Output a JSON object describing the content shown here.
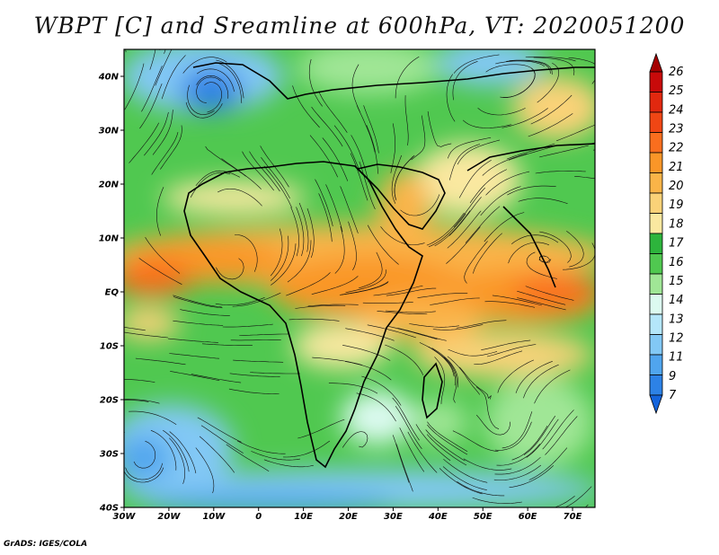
{
  "title": "WBPT [C] and Sreamline at 600hPa, VT: 2020051200",
  "credit": "GrADS: IGES/COLA",
  "axes": {
    "lat_labels": [
      "40N",
      "30N",
      "20N",
      "10N",
      "EQ",
      "10S",
      "20S",
      "30S",
      "40S"
    ],
    "lat_values": [
      40,
      30,
      20,
      10,
      0,
      -10,
      -20,
      -30,
      -40
    ],
    "lon_labels": [
      "30W",
      "20W",
      "10W",
      "0",
      "10E",
      "20E",
      "30E",
      "40E",
      "50E",
      "60E",
      "70E"
    ],
    "lon_values": [
      -30,
      -20,
      -10,
      0,
      10,
      20,
      30,
      40,
      50,
      60,
      70
    ],
    "lon_range": [
      -30,
      75
    ],
    "lat_range": [
      -40,
      45
    ]
  },
  "colorbar": {
    "labels": [
      "26",
      "25",
      "24",
      "23",
      "22",
      "21",
      "20",
      "19",
      "18",
      "17",
      "16",
      "15",
      "14",
      "13",
      "12",
      "11",
      "9",
      "7"
    ],
    "colors": [
      "#a50000",
      "#c80a0a",
      "#e1280f",
      "#f04614",
      "#fa6e1e",
      "#fa9628",
      "#fab448",
      "#fad278",
      "#fae8a0",
      "#2db43c",
      "#50c850",
      "#a0e696",
      "#dcfaf0",
      "#b4e6fa",
      "#82c8f5",
      "#50a5ee",
      "#2d82e6",
      "#1464dc"
    ]
  }
}
